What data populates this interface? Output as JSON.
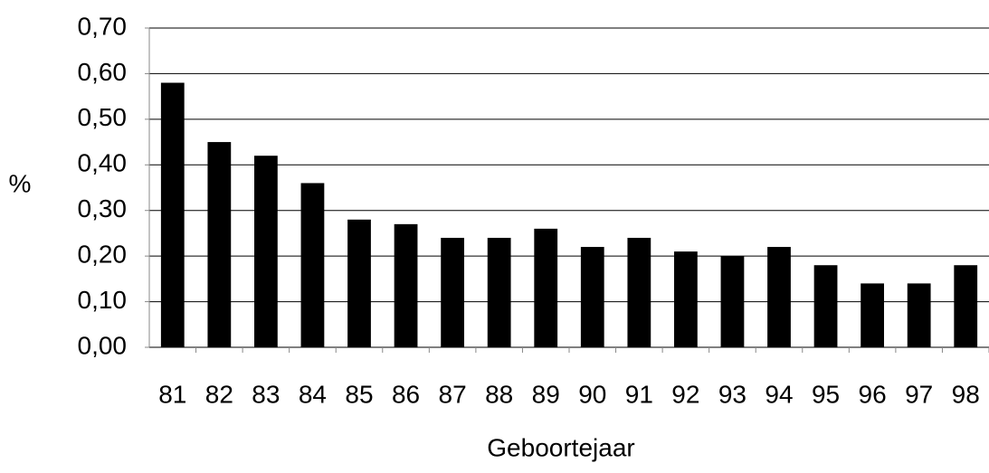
{
  "chart_data": {
    "type": "bar",
    "x_label": "Geboortejaar",
    "y_label": "%",
    "categories": [
      "81",
      "82",
      "83",
      "84",
      "85",
      "86",
      "87",
      "88",
      "89",
      "90",
      "91",
      "92",
      "93",
      "94",
      "95",
      "96",
      "97",
      "98"
    ],
    "values": [
      0.58,
      0.45,
      0.42,
      0.36,
      0.28,
      0.27,
      0.24,
      0.24,
      0.26,
      0.22,
      0.24,
      0.21,
      0.2,
      0.22,
      0.18,
      0.14,
      0.14,
      0.18
    ],
    "color": "#000000",
    "ylim": [
      0,
      0.7
    ],
    "yticks": [
      {
        "value": 0,
        "label": "0,00"
      },
      {
        "value": 0.1,
        "label": "0,10"
      },
      {
        "value": 0.2,
        "label": "0,20"
      },
      {
        "value": 0.3,
        "label": "0,30"
      },
      {
        "value": 0.4,
        "label": "0,40"
      },
      {
        "value": 0.5,
        "label": "0,50"
      },
      {
        "value": 0.6,
        "label": "0,60"
      },
      {
        "value": 0.7,
        "label": "0,70"
      }
    ],
    "grid": true
  }
}
